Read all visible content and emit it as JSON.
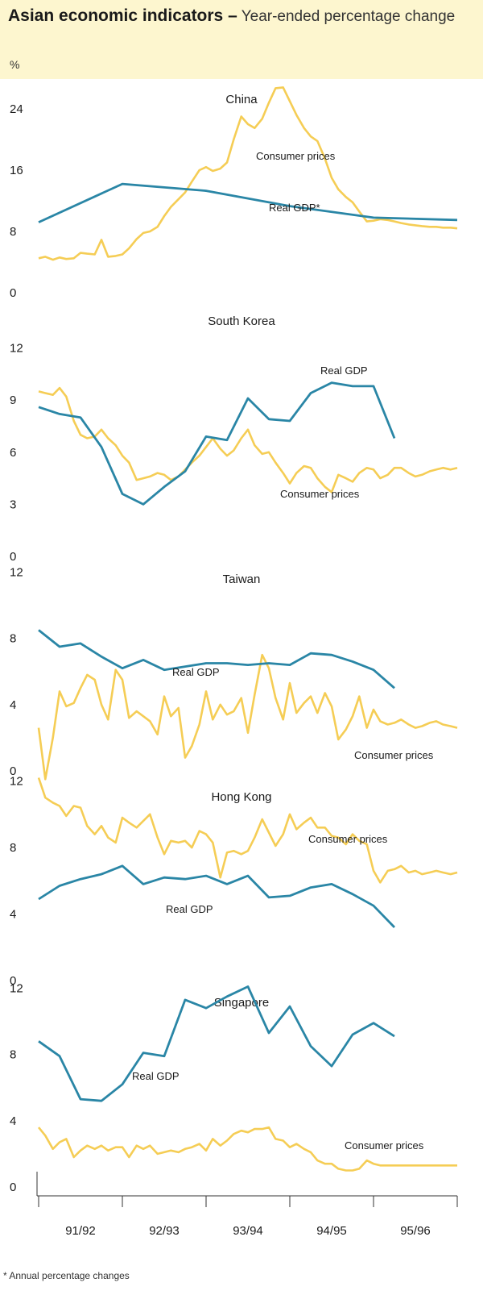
{
  "header": {
    "title_bold": "Asian economic indicators –",
    "title_rest": "Year-ended percentage change",
    "unit": "%"
  },
  "footnote": "* Annual percentage changes",
  "colors": {
    "gdp": "#2a86a6",
    "cpi": "#f5cd55",
    "axis": "#333333",
    "panel_bg": "#fdf6cf"
  },
  "chart_data": [
    {
      "type": "line",
      "title": "China",
      "x_categories": [
        "91/92",
        "92/93",
        "93/94",
        "94/95",
        "95/96"
      ],
      "x_range": [
        0,
        5
      ],
      "ylim": [
        0,
        28
      ],
      "yticks": [
        "0",
        "8",
        "16",
        "24"
      ],
      "series": [
        {
          "name": "Real GDP*",
          "x": [
            0.0,
            1.0,
            2.0,
            3.0,
            4.0,
            5.0
          ],
          "values": [
            9.2,
            14.2,
            13.3,
            11.3,
            9.8,
            9.5
          ]
        },
        {
          "name": "Consumer prices",
          "x": [
            0.0,
            0.08,
            0.17,
            0.25,
            0.33,
            0.42,
            0.5,
            0.58,
            0.67,
            0.75,
            0.83,
            0.92,
            1.0,
            1.08,
            1.17,
            1.25,
            1.33,
            1.42,
            1.5,
            1.58,
            1.67,
            1.75,
            1.83,
            1.92,
            2.0,
            2.08,
            2.17,
            2.25,
            2.33,
            2.42,
            2.5,
            2.58,
            2.67,
            2.75,
            2.83,
            2.92,
            3.0,
            3.08,
            3.17,
            3.25,
            3.33,
            3.42,
            3.5,
            3.58,
            3.67,
            3.75,
            3.83,
            3.92,
            4.0,
            4.08,
            4.17,
            4.25,
            4.33,
            4.42,
            4.5,
            4.58,
            4.67,
            4.75,
            4.83,
            4.92,
            5.0
          ],
          "values": [
            4.5,
            4.7,
            4.3,
            4.6,
            4.4,
            4.5,
            5.2,
            5.1,
            5.0,
            6.9,
            4.7,
            4.8,
            5.0,
            5.8,
            7.0,
            7.8,
            8.0,
            8.6,
            10.0,
            11.2,
            12.2,
            13.1,
            14.5,
            16.0,
            16.4,
            15.9,
            16.2,
            17.0,
            20.0,
            23.0,
            22.0,
            21.5,
            22.7,
            24.8,
            26.7,
            26.8,
            25.0,
            23.2,
            21.5,
            20.4,
            19.8,
            17.5,
            15.0,
            13.5,
            12.5,
            11.8,
            10.6,
            9.3,
            9.4,
            9.6,
            9.5,
            9.3,
            9.1,
            8.9,
            8.8,
            8.7,
            8.6,
            8.6,
            8.5,
            8.5,
            8.4
          ]
        }
      ],
      "annotations": [
        "Consumer prices",
        "Real GDP*"
      ]
    },
    {
      "type": "line",
      "title": "South Korea",
      "x_categories": [
        "91/92",
        "92/93",
        "93/94",
        "94/95",
        "95/96"
      ],
      "x_range": [
        0,
        5
      ],
      "ylim": [
        0,
        13
      ],
      "yticks": [
        "0",
        "3",
        "6",
        "9",
        "12"
      ],
      "series": [
        {
          "name": "Real GDP",
          "x": [
            0.0,
            0.25,
            0.5,
            0.75,
            1.0,
            1.25,
            1.5,
            1.75,
            2.0,
            2.25,
            2.5,
            2.75,
            3.0,
            3.25,
            3.5,
            3.75,
            4.0,
            4.25
          ],
          "values": [
            8.6,
            8.2,
            8.0,
            6.3,
            3.6,
            3.0,
            4.0,
            4.9,
            6.9,
            6.7,
            9.1,
            7.9,
            7.8,
            9.4,
            10.0,
            9.8,
            9.8,
            6.8
          ]
        },
        {
          "name": "Consumer prices",
          "x": [
            0.0,
            0.08,
            0.17,
            0.25,
            0.33,
            0.42,
            0.5,
            0.58,
            0.67,
            0.75,
            0.83,
            0.92,
            1.0,
            1.08,
            1.17,
            1.25,
            1.33,
            1.42,
            1.5,
            1.58,
            1.67,
            1.75,
            1.83,
            1.92,
            2.0,
            2.08,
            2.17,
            2.25,
            2.33,
            2.42,
            2.5,
            2.58,
            2.67,
            2.75,
            2.83,
            2.92,
            3.0,
            3.08,
            3.17,
            3.25,
            3.33,
            3.42,
            3.5,
            3.58,
            3.67,
            3.75,
            3.83,
            3.92,
            4.0,
            4.08,
            4.17,
            4.25,
            4.33,
            4.42,
            4.5,
            4.58,
            4.67,
            4.75,
            4.83,
            4.92,
            5.0
          ],
          "values": [
            9.5,
            9.4,
            9.3,
            9.7,
            9.2,
            7.8,
            7.0,
            6.8,
            6.9,
            7.3,
            6.8,
            6.4,
            5.8,
            5.4,
            4.4,
            4.5,
            4.6,
            4.8,
            4.7,
            4.4,
            4.6,
            5.0,
            5.4,
            5.8,
            6.3,
            6.8,
            6.2,
            5.8,
            6.1,
            6.8,
            7.3,
            6.4,
            5.9,
            6.0,
            5.4,
            4.8,
            4.2,
            4.8,
            5.2,
            5.1,
            4.5,
            4.0,
            3.7,
            4.7,
            4.5,
            4.3,
            4.8,
            5.1,
            5.0,
            4.5,
            4.7,
            5.1,
            5.1,
            4.8,
            4.6,
            4.7,
            4.9,
            5.0,
            5.1,
            5.0,
            5.1
          ]
        }
      ],
      "annotations": [
        "Real GDP",
        "Consumer prices"
      ]
    },
    {
      "type": "line",
      "title": "Taiwan",
      "x_categories": [
        "91/92",
        "92/93",
        "93/94",
        "94/95",
        "95/96"
      ],
      "x_range": [
        0,
        5
      ],
      "ylim": [
        0,
        13
      ],
      "yticks": [
        "0",
        "4",
        "8",
        "12"
      ],
      "series": [
        {
          "name": "Real GDP",
          "x": [
            0.0,
            0.25,
            0.5,
            0.75,
            1.0,
            1.25,
            1.5,
            1.75,
            2.0,
            2.25,
            2.5,
            2.75,
            3.0,
            3.25,
            3.5,
            3.75,
            4.0,
            4.25
          ],
          "values": [
            8.5,
            7.5,
            7.7,
            6.9,
            6.2,
            6.7,
            6.1,
            6.3,
            6.5,
            6.5,
            6.4,
            6.5,
            6.4,
            7.1,
            7.0,
            6.6,
            6.1,
            5.0
          ]
        },
        {
          "name": "Consumer prices",
          "x": [
            0.0,
            0.08,
            0.17,
            0.25,
            0.33,
            0.42,
            0.5,
            0.58,
            0.67,
            0.75,
            0.83,
            0.92,
            1.0,
            1.08,
            1.17,
            1.25,
            1.33,
            1.42,
            1.5,
            1.58,
            1.67,
            1.75,
            1.83,
            1.92,
            2.0,
            2.08,
            2.17,
            2.25,
            2.33,
            2.42,
            2.5,
            2.58,
            2.67,
            2.75,
            2.83,
            2.92,
            3.0,
            3.08,
            3.17,
            3.25,
            3.33,
            3.42,
            3.5,
            3.58,
            3.67,
            3.75,
            3.83,
            3.92,
            4.0,
            4.08,
            4.17,
            4.25,
            4.33,
            4.42,
            4.5,
            4.58,
            4.67,
            4.75,
            4.83,
            4.92,
            5.0
          ],
          "values": [
            2.6,
            -0.5,
            2.0,
            4.8,
            3.9,
            4.1,
            5.0,
            5.8,
            5.5,
            4.0,
            3.1,
            6.1,
            5.5,
            3.2,
            3.6,
            3.3,
            3.0,
            2.2,
            4.5,
            3.3,
            3.8,
            0.8,
            1.5,
            2.8,
            4.8,
            3.1,
            4.0,
            3.4,
            3.6,
            4.4,
            2.3,
            4.6,
            7.0,
            6.2,
            4.4,
            3.1,
            5.3,
            3.5,
            4.1,
            4.5,
            3.5,
            4.7,
            3.9,
            1.9,
            2.5,
            3.3,
            4.5,
            2.6,
            3.7,
            3.0,
            2.8,
            2.9,
            3.1,
            2.8,
            2.6,
            2.7,
            2.9,
            3.0,
            2.8,
            2.7,
            2.6
          ]
        }
      ],
      "annotations": [
        "Real GDP",
        "Consumer prices"
      ]
    },
    {
      "type": "line",
      "title": "Hong Kong",
      "x_categories": [
        "91/92",
        "92/93",
        "93/94",
        "94/95",
        "95/96"
      ],
      "x_range": [
        0,
        5
      ],
      "ylim": [
        0,
        13
      ],
      "yticks": [
        "0",
        "4",
        "8",
        "12"
      ],
      "series": [
        {
          "name": "Real GDP",
          "x": [
            0.0,
            0.25,
            0.5,
            0.75,
            1.0,
            1.25,
            1.5,
            1.75,
            2.0,
            2.25,
            2.5,
            2.75,
            3.0,
            3.25,
            3.5,
            3.75,
            4.0,
            4.25
          ],
          "values": [
            4.9,
            5.7,
            6.1,
            6.4,
            6.9,
            5.8,
            6.2,
            6.1,
            6.3,
            5.8,
            6.3,
            5.0,
            5.1,
            5.6,
            5.8,
            5.2,
            4.5,
            3.2
          ]
        },
        {
          "name": "Consumer prices",
          "x": [
            0.0,
            0.08,
            0.17,
            0.25,
            0.33,
            0.42,
            0.5,
            0.58,
            0.67,
            0.75,
            0.83,
            0.92,
            1.0,
            1.08,
            1.17,
            1.25,
            1.33,
            1.42,
            1.5,
            1.58,
            1.67,
            1.75,
            1.83,
            1.92,
            2.0,
            2.08,
            2.17,
            2.25,
            2.33,
            2.42,
            2.5,
            2.58,
            2.67,
            2.75,
            2.83,
            2.92,
            3.0,
            3.08,
            3.17,
            3.25,
            3.33,
            3.42,
            3.5,
            3.58,
            3.67,
            3.75,
            3.83,
            3.92,
            4.0,
            4.08,
            4.17,
            4.25,
            4.33,
            4.42,
            4.5,
            4.58,
            4.67,
            4.75,
            4.83,
            4.92,
            5.0
          ],
          "values": [
            12.2,
            11.0,
            10.7,
            10.5,
            9.9,
            10.5,
            10.4,
            9.3,
            8.8,
            9.3,
            8.6,
            8.3,
            9.8,
            9.5,
            9.2,
            9.6,
            10.0,
            8.6,
            7.6,
            8.4,
            8.3,
            8.4,
            8.0,
            9.0,
            8.8,
            8.3,
            6.2,
            7.7,
            7.8,
            7.6,
            7.8,
            8.6,
            9.7,
            8.9,
            8.1,
            8.8,
            10.0,
            9.1,
            9.5,
            9.8,
            9.2,
            9.2,
            8.7,
            8.6,
            8.2,
            8.8,
            8.4,
            8.2,
            6.6,
            5.9,
            6.6,
            6.7,
            6.9,
            6.5,
            6.6,
            6.4,
            6.5,
            6.6,
            6.5,
            6.4,
            6.5
          ]
        }
      ],
      "annotations": [
        "Consumer prices",
        "Real GDP"
      ]
    },
    {
      "type": "line",
      "title": "Singapore",
      "x_categories": [
        "91/92",
        "92/93",
        "93/94",
        "94/95",
        "95/96"
      ],
      "x_range": [
        0,
        5
      ],
      "ylim": [
        0,
        13
      ],
      "yticks": [
        "0",
        "4",
        "8",
        "12"
      ],
      "series": [
        {
          "name": "Real GDP",
          "x": [
            0.0,
            0.25,
            0.5,
            0.75,
            1.0,
            1.25,
            1.5,
            1.75,
            2.0,
            2.25,
            2.5,
            2.75,
            3.0,
            3.25,
            3.5,
            3.75,
            4.0,
            4.25
          ],
          "values": [
            8.8,
            7.9,
            5.3,
            5.2,
            6.2,
            8.1,
            7.9,
            11.3,
            10.8,
            11.5,
            12.1,
            9.3,
            10.9,
            8.5,
            7.3,
            9.2,
            9.9,
            9.1
          ]
        },
        {
          "name": "Consumer prices",
          "x": [
            0.0,
            0.08,
            0.17,
            0.25,
            0.33,
            0.42,
            0.5,
            0.58,
            0.67,
            0.75,
            0.83,
            0.92,
            1.0,
            1.08,
            1.17,
            1.25,
            1.33,
            1.42,
            1.5,
            1.58,
            1.67,
            1.75,
            1.83,
            1.92,
            2.0,
            2.08,
            2.17,
            2.25,
            2.33,
            2.42,
            2.5,
            2.58,
            2.67,
            2.75,
            2.83,
            2.92,
            3.0,
            3.08,
            3.17,
            3.25,
            3.33,
            3.42,
            3.5,
            3.58,
            3.67,
            3.75,
            3.83,
            3.92,
            4.0,
            4.08,
            4.17,
            4.25,
            4.33,
            4.42,
            4.5,
            4.58,
            4.67,
            4.75,
            4.83,
            4.92,
            5.0
          ],
          "values": [
            3.6,
            3.1,
            2.3,
            2.7,
            2.9,
            1.8,
            2.2,
            2.5,
            2.3,
            2.5,
            2.2,
            2.4,
            2.4,
            1.8,
            2.5,
            2.3,
            2.5,
            2.0,
            2.1,
            2.2,
            2.1,
            2.3,
            2.4,
            2.6,
            2.2,
            2.9,
            2.5,
            2.8,
            3.2,
            3.4,
            3.3,
            3.5,
            3.5,
            3.6,
            2.9,
            2.8,
            2.4,
            2.6,
            2.3,
            2.1,
            1.6,
            1.4,
            1.4,
            1.1,
            1.0,
            1.0,
            1.1,
            1.6,
            1.4,
            1.3,
            1.3,
            1.3,
            1.3,
            1.3,
            1.3,
            1.3,
            1.3,
            1.3,
            1.3,
            1.3,
            1.3
          ]
        }
      ],
      "annotations": [
        "Real GDP",
        "Consumer prices"
      ]
    }
  ]
}
